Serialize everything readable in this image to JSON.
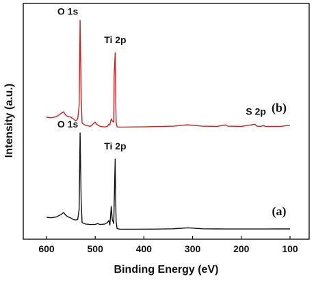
{
  "chart_data": {
    "type": "line",
    "xlabel": "Binding Energy (eV)",
    "ylabel": "Intensity (a.u.)",
    "xlim": [
      100,
      600
    ],
    "x_reversed": true,
    "x_ticks": [
      "600",
      "500",
      "400",
      "300",
      "200",
      "100"
    ],
    "y_ticks_shown": false,
    "grid": false,
    "legend": "none",
    "series": [
      {
        "name": "(a)",
        "color": "#111111",
        "points": [
          [
            600,
            0.122
          ],
          [
            590,
            0.118
          ],
          [
            580,
            0.125
          ],
          [
            570,
            0.15
          ],
          [
            565,
            0.17
          ],
          [
            560,
            0.14
          ],
          [
            555,
            0.125
          ],
          [
            550,
            0.115
          ],
          [
            545,
            0.1
          ],
          [
            540,
            0.095
          ],
          [
            536,
            0.1
          ],
          [
            533,
            0.2
          ],
          [
            531,
            0.96
          ],
          [
            529,
            0.3
          ],
          [
            527,
            0.07
          ],
          [
            520,
            0.055
          ],
          [
            510,
            0.05
          ],
          [
            500,
            0.052
          ],
          [
            495,
            0.06
          ],
          [
            490,
            0.05
          ],
          [
            480,
            0.055
          ],
          [
            475,
            0.07
          ],
          [
            472,
            0.09
          ],
          [
            470,
            0.045
          ],
          [
            467,
            0.23
          ],
          [
            465,
            0.1
          ],
          [
            462,
            0.06
          ],
          [
            460,
            0.5
          ],
          [
            459,
            0.7
          ],
          [
            458,
            0.3
          ],
          [
            457,
            0.08
          ],
          [
            455,
            0.01
          ],
          [
            450,
            0.005
          ],
          [
            440,
            0.004
          ],
          [
            420,
            0.004
          ],
          [
            400,
            0.005
          ],
          [
            380,
            0.005
          ],
          [
            360,
            0.006
          ],
          [
            340,
            0.008
          ],
          [
            310,
            0.018
          ],
          [
            300,
            0.015
          ],
          [
            280,
            0.008
          ],
          [
            250,
            0.007
          ],
          [
            230,
            0.006
          ],
          [
            200,
            0.006
          ],
          [
            170,
            0.006
          ],
          [
            150,
            0.006
          ],
          [
            120,
            0.007
          ],
          [
            100,
            0.007
          ]
        ],
        "label": "(a)"
      },
      {
        "name": "(b)",
        "color": "#cc1f1f",
        "points": [
          [
            600,
            0.095
          ],
          [
            590,
            0.09
          ],
          [
            580,
            0.1
          ],
          [
            570,
            0.13
          ],
          [
            565,
            0.145
          ],
          [
            560,
            0.11
          ],
          [
            555,
            0.1
          ],
          [
            550,
            0.095
          ],
          [
            545,
            0.08
          ],
          [
            540,
            0.06
          ],
          [
            536,
            0.08
          ],
          [
            533,
            0.2
          ],
          [
            531,
            0.99
          ],
          [
            529,
            0.3
          ],
          [
            527,
            0.04
          ],
          [
            520,
            0.02
          ],
          [
            510,
            0.01
          ],
          [
            500,
            0.05
          ],
          [
            497,
            0.03
          ],
          [
            490,
            0.01
          ],
          [
            480,
            0.005
          ],
          [
            475,
            0.01
          ],
          [
            472,
            0.03
          ],
          [
            470,
            0.025
          ],
          [
            467,
            0.08
          ],
          [
            465,
            0.06
          ],
          [
            462,
            0.05
          ],
          [
            461,
            0.5
          ],
          [
            459,
            0.69
          ],
          [
            458,
            0.3
          ],
          [
            457,
            0.05
          ],
          [
            455,
            0.005
          ],
          [
            450,
            0.004
          ],
          [
            440,
            0.004
          ],
          [
            420,
            0.005
          ],
          [
            400,
            0.006
          ],
          [
            380,
            0.008
          ],
          [
            360,
            0.01
          ],
          [
            340,
            0.012
          ],
          [
            310,
            0.025
          ],
          [
            300,
            0.02
          ],
          [
            280,
            0.012
          ],
          [
            250,
            0.01
          ],
          [
            232,
            0.024
          ],
          [
            228,
            0.012
          ],
          [
            200,
            0.01
          ],
          [
            172,
            0.03
          ],
          [
            168,
            0.012
          ],
          [
            160,
            0.01
          ],
          [
            155,
            0.018
          ],
          [
            150,
            0.01
          ],
          [
            120,
            0.01
          ],
          [
            105,
            0.018
          ],
          [
            100,
            0.02
          ]
        ],
        "label": "(b)"
      }
    ],
    "annotations": [
      {
        "text": "O 1s",
        "series": "(b)",
        "x": 531
      },
      {
        "text": "Ti 2p",
        "series": "(b)",
        "x": 459
      },
      {
        "text": "S 2p",
        "series": "(b)",
        "x": 170
      },
      {
        "text": "O 1s",
        "series": "(a)",
        "x": 531
      },
      {
        "text": "Ti 2p",
        "series": "(a)",
        "x": 459
      }
    ]
  }
}
